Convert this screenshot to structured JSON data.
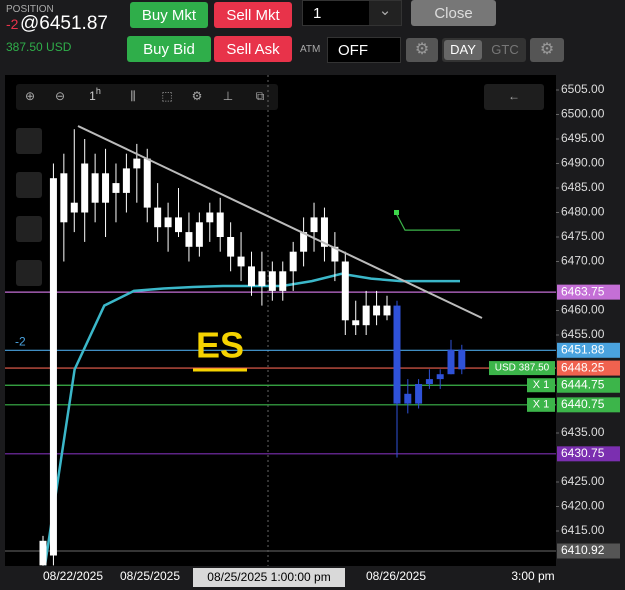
{
  "header": {
    "position_label": "POSITION",
    "position_qty": "-2",
    "avg_price": "@6451.87",
    "pnl": "387.50 USD"
  },
  "order_buttons": [
    "Buy Mkt",
    "Sell Mkt",
    "Buy Bid",
    "Sell Ask"
  ],
  "quantity": "1",
  "close": "Close",
  "atm_label": "ATM",
  "atm_value": "OFF",
  "tif": [
    "DAY",
    "GTC"
  ],
  "chart": {
    "interval": "1",
    "interval_unit": "h",
    "symbol": "ES",
    "price_axis": {
      "ylim": [
        6407.86,
        6508.06
      ],
      "yticks": [
        {
          "value": 6505,
          "label": "6505.00"
        },
        {
          "value": 6500,
          "label": "6500.00"
        },
        {
          "value": 6495,
          "label": "6495.00"
        },
        {
          "value": 6490,
          "label": "6490.00"
        },
        {
          "value": 6485,
          "label": "6485.00"
        },
        {
          "value": 6480,
          "label": "6480.00"
        },
        {
          "value": 6475,
          "label": "6475.00"
        },
        {
          "value": 6470,
          "label": "6470.00"
        },
        {
          "value": 6460,
          "label": "6460.00"
        },
        {
          "value": 6455,
          "label": "6455.00"
        },
        {
          "value": 6435,
          "label": "6435.00"
        },
        {
          "value": 6425,
          "label": "6425.00"
        },
        {
          "value": 6420,
          "label": "6420.00"
        },
        {
          "value": 6415,
          "label": "6415.00"
        }
      ]
    },
    "x_labels": [
      "08/22/2025",
      "08/25/2025",
      "08/26/2025",
      "3:00 pm"
    ],
    "crosshair_label": "08/25/2025 1:00:00 pm",
    "candles": [
      {
        "o": 6408,
        "h": 6414,
        "l": 6407.9,
        "c": 6413
      },
      {
        "o": 6410,
        "h": 6490,
        "l": 6408,
        "c": 6487
      },
      {
        "o": 6478,
        "h": 6492,
        "l": 6470,
        "c": 6488
      },
      {
        "o": 6482,
        "h": 6497,
        "l": 6476,
        "c": 6480
      },
      {
        "o": 6480,
        "h": 6495,
        "l": 6474,
        "c": 6490
      },
      {
        "o": 6488,
        "h": 6492,
        "l": 6478,
        "c": 6482
      },
      {
        "o": 6482,
        "h": 6493,
        "l": 6475,
        "c": 6488
      },
      {
        "o": 6486,
        "h": 6490,
        "l": 6478,
        "c": 6484
      },
      {
        "o": 6484,
        "h": 6492,
        "l": 6480,
        "c": 6489
      },
      {
        "o": 6489,
        "h": 6494,
        "l": 6482,
        "c": 6491
      },
      {
        "o": 6491,
        "h": 6493,
        "l": 6478,
        "c": 6481
      },
      {
        "o": 6481,
        "h": 6486,
        "l": 6474,
        "c": 6477
      },
      {
        "o": 6477,
        "h": 6482,
        "l": 6472,
        "c": 6479
      },
      {
        "o": 6479,
        "h": 6485,
        "l": 6475,
        "c": 6476
      },
      {
        "o": 6476,
        "h": 6480,
        "l": 6470,
        "c": 6473
      },
      {
        "o": 6473,
        "h": 6480,
        "l": 6471,
        "c": 6478
      },
      {
        "o": 6478,
        "h": 6482,
        "l": 6474,
        "c": 6480
      },
      {
        "o": 6480,
        "h": 6483,
        "l": 6472,
        "c": 6475
      },
      {
        "o": 6475,
        "h": 6478,
        "l": 6468,
        "c": 6471
      },
      {
        "o": 6471,
        "h": 6476,
        "l": 6466,
        "c": 6469
      },
      {
        "o": 6469,
        "h": 6472,
        "l": 6463,
        "c": 6465
      },
      {
        "o": 6465,
        "h": 6472,
        "l": 6461,
        "c": 6468
      },
      {
        "o": 6468,
        "h": 6470,
        "l": 6462,
        "c": 6464
      },
      {
        "o": 6464,
        "h": 6470,
        "l": 6462,
        "c": 6468
      },
      {
        "o": 6468,
        "h": 6474,
        "l": 6464,
        "c": 6472
      },
      {
        "o": 6472,
        "h": 6479,
        "l": 6469,
        "c": 6476
      },
      {
        "o": 6476,
        "h": 6482,
        "l": 6472,
        "c": 6479
      },
      {
        "o": 6479,
        "h": 6481,
        "l": 6470,
        "c": 6473
      },
      {
        "o": 6473,
        "h": 6476,
        "l": 6466,
        "c": 6470
      },
      {
        "o": 6470,
        "h": 6472,
        "l": 6455,
        "c": 6458
      },
      {
        "o": 6458,
        "h": 6462,
        "l": 6455,
        "c": 6457
      },
      {
        "o": 6457,
        "h": 6464,
        "l": 6455,
        "c": 6461
      },
      {
        "o": 6461,
        "h": 6464,
        "l": 6457,
        "c": 6459
      },
      {
        "o": 6459,
        "h": 6463,
        "l": 6458,
        "c": 6461
      }
    ],
    "blue_candles": [
      {
        "o": 6461,
        "h": 6462,
        "l": 6430,
        "c": 6441
      },
      {
        "o": 6441,
        "h": 6446,
        "l": 6439,
        "c": 6443
      },
      {
        "o": 6441,
        "h": 6446,
        "l": 6440,
        "c": 6445
      },
      {
        "o": 6445,
        "h": 6448,
        "l": 6444,
        "c": 6446
      },
      {
        "o": 6446,
        "h": 6448,
        "l": 6444,
        "c": 6447
      },
      {
        "o": 6447,
        "h": 6454,
        "l": 6447,
        "c": 6452
      },
      {
        "o": 6448,
        "h": 6453,
        "l": 6447,
        "c": 6452
      }
    ],
    "moving_average": [
      6408,
      6448,
      6461,
      6464,
      6464.5,
      6464.8,
      6465,
      6465,
      6465,
      6466,
      6467.5,
      6466.5,
      6466,
      6466,
      6466
    ],
    "trendline": [
      6497.65,
      6458.47
    ],
    "target_line": [
      6479.9,
      6476.4
    ],
    "levels": [
      {
        "price": 6463.75,
        "color": "#c46fd6"
      },
      {
        "price": 6451.88,
        "color": "#4aa3df"
      },
      {
        "price": 6448.25,
        "color": "#f0624f"
      },
      {
        "price": 6444.75,
        "color": "#3cb54a"
      },
      {
        "price": 6440.75,
        "color": "#3cb54a"
      },
      {
        "price": 6430.75,
        "color": "#7b2fb0"
      },
      {
        "price": 6410.92,
        "color": "#555555"
      }
    ],
    "position_marker": "-2",
    "pnl_tag": "USD 387.50",
    "order_tags": [
      "X 1",
      "X 1"
    ]
  }
}
